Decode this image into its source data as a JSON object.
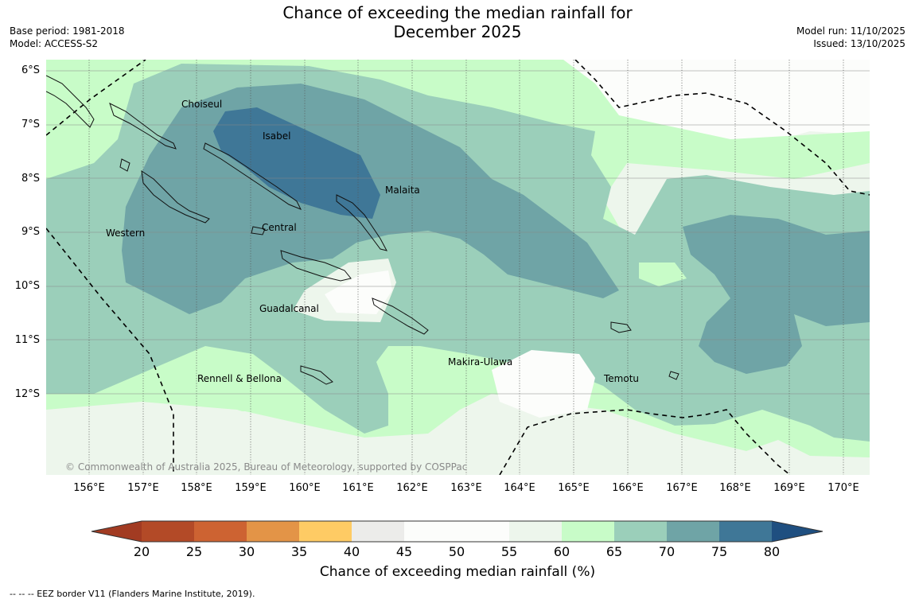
{
  "header": {
    "title_line1": "Chance of exceeding the median rainfall for",
    "title_line2": "December 2025",
    "base_period": "Base period: 1981-2018",
    "model": "Model: ACCESS-S2",
    "model_run": "Model run: 11/10/2025",
    "issued": "Issued: 13/10/2025"
  },
  "map": {
    "lat_labels": [
      "6°S",
      "7°S",
      "8°S",
      "9°S",
      "10°S",
      "11°S",
      "12°S"
    ],
    "lon_labels": [
      "156°E",
      "157°E",
      "158°E",
      "159°E",
      "160°E",
      "161°E",
      "162°E",
      "163°E",
      "164°E",
      "165°E",
      "166°E",
      "167°E",
      "168°E",
      "169°E",
      "170°E"
    ],
    "places": {
      "choiseul": "Choiseul",
      "isabel": "Isabel",
      "malaita": "Malaita",
      "western": "Western",
      "central": "Central",
      "guadalcanal": "Guadalcanal",
      "makira": "Makira-Ulawa",
      "rennell": "Rennell & Bellona",
      "temotu": "Temotu"
    },
    "copyright": "© Commonwealth of Australia 2025, Bureau of Meteorology, supported by COSPPac"
  },
  "colorbar": {
    "ticks": [
      "20",
      "25",
      "30",
      "35",
      "40",
      "45",
      "50",
      "55",
      "60",
      "65",
      "70",
      "75",
      "80"
    ],
    "colors": [
      "#a23b22",
      "#b34a27",
      "#cd6332",
      "#e39447",
      "#fecb64",
      "#ececea",
      "#fcfdfb",
      "#fcfdfb",
      "#edf6ec",
      "#c8fcc8",
      "#9bcfba",
      "#6fa4a6",
      "#3f7797",
      "#1f4f80"
    ],
    "title": "Chance of exceeding median rainfall (%)"
  },
  "legend": {
    "eez": "--  --  -- EEZ border V11 (Flanders Marine Institute, 2019)."
  }
}
